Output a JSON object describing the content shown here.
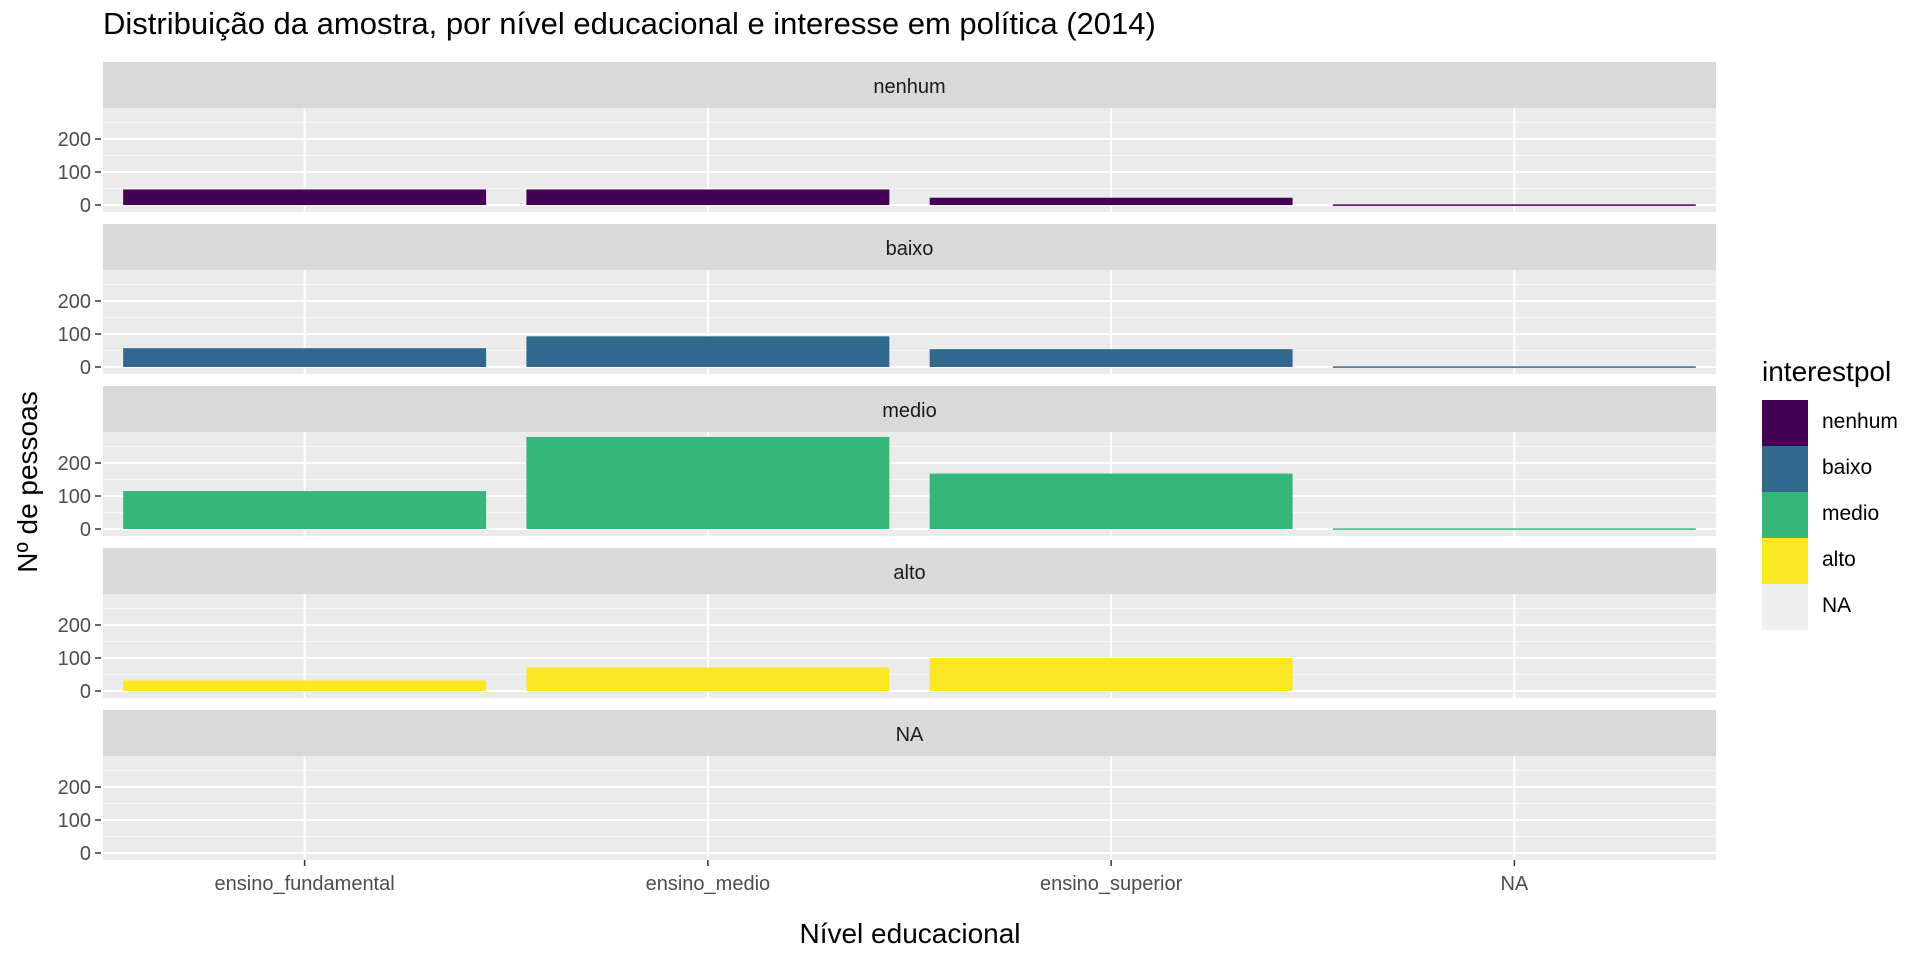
{
  "chart_data": {
    "type": "bar",
    "title": "Distribuição da amostra, por nível educacional e interesse em política (2014)",
    "xlabel": "Nível educacional",
    "ylabel": "Nº de pessoas",
    "categories": [
      "ensino_fundamental",
      "ensino_medio",
      "ensino_superior",
      "NA"
    ],
    "ylim": [
      0,
      280
    ],
    "yticks": [
      0,
      100,
      200
    ],
    "grid": true,
    "facet_by": "interestpol",
    "legend": {
      "title": "interestpol",
      "position": "right",
      "entries": [
        {
          "label": "nenhum",
          "color": "#440154"
        },
        {
          "label": "baixo",
          "color": "#31688E"
        },
        {
          "label": "medio",
          "color": "#35B779"
        },
        {
          "label": "alto",
          "color": "#FDE725"
        },
        {
          "label": "NA",
          "color": "#EFEFEF"
        }
      ]
    },
    "series": [
      {
        "name": "nenhum",
        "color": "#440154",
        "values": [
          47,
          47,
          22,
          2
        ]
      },
      {
        "name": "baixo",
        "color": "#31688E",
        "values": [
          57,
          93,
          54,
          2
        ]
      },
      {
        "name": "medio",
        "color": "#35B779",
        "values": [
          115,
          279,
          168,
          2
        ]
      },
      {
        "name": "alto",
        "color": "#FDE725",
        "values": [
          32,
          71,
          100,
          0
        ]
      },
      {
        "name": "NA",
        "color": "#EFEFEF",
        "values": [
          0,
          0,
          0,
          0
        ]
      }
    ]
  }
}
